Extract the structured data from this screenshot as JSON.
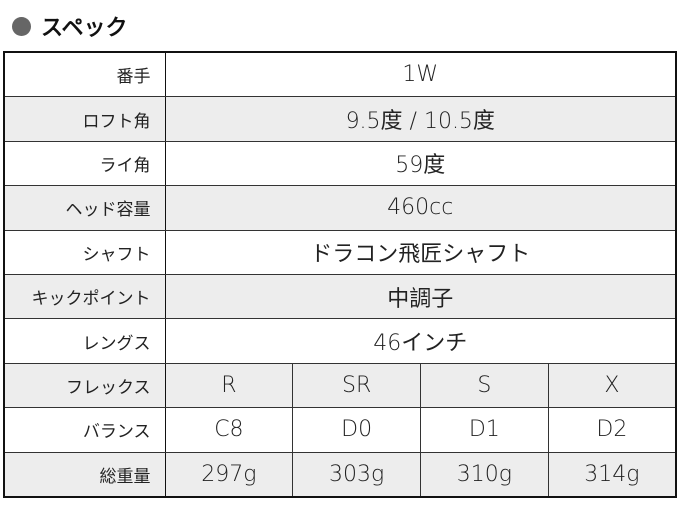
{
  "title": "スペック",
  "rows": [
    {
      "label": "番手",
      "value": "1W"
    },
    {
      "label": "ロフト角",
      "value": "9.5度 / 10.5度"
    },
    {
      "label": "ライ角",
      "value": "59度"
    },
    {
      "label": "ヘッド容量",
      "value": "460cc"
    },
    {
      "label": "シャフト",
      "value": "ドラコン飛匠シャフト"
    },
    {
      "label": "キックポイント",
      "value": "中調子"
    },
    {
      "label": "レングス",
      "value": "46インチ"
    }
  ],
  "flex_rows": [
    {
      "label": "フレックス",
      "values": [
        "R",
        "SR",
        "S",
        "X"
      ]
    },
    {
      "label": "バランス",
      "values": [
        "C8",
        "D0",
        "D1",
        "D2"
      ]
    },
    {
      "label": "総重量",
      "values": [
        "297g",
        "303g",
        "310g",
        "314g"
      ]
    }
  ],
  "colors": {
    "row_alt": "#ededed",
    "bullet": "#666666"
  }
}
